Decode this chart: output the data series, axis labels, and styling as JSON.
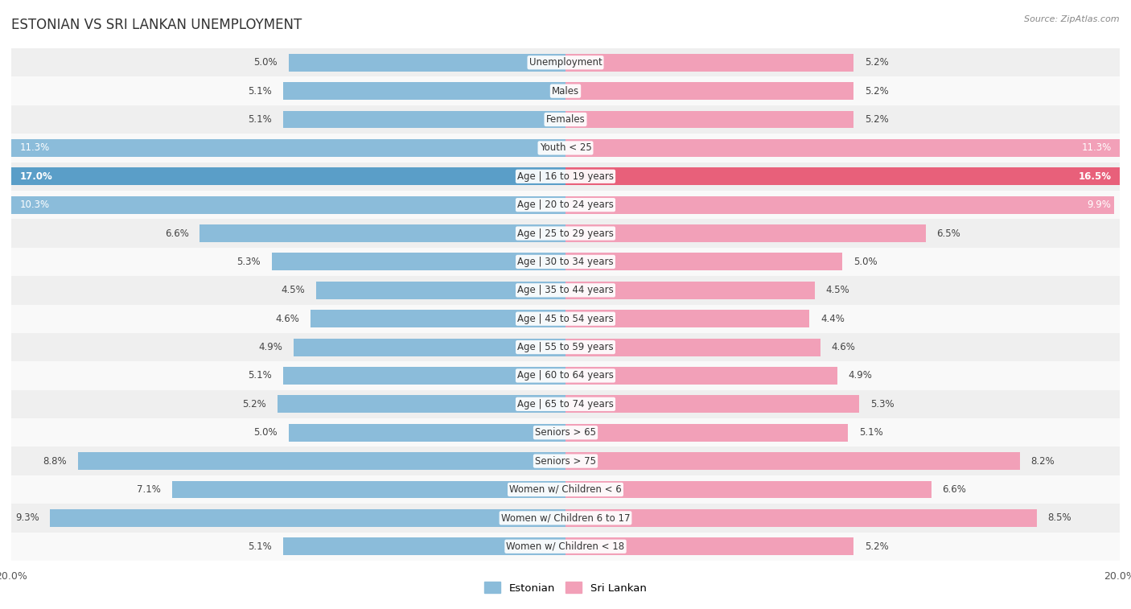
{
  "title": "ESTONIAN VS SRI LANKAN UNEMPLOYMENT",
  "source": "Source: ZipAtlas.com",
  "categories": [
    "Unemployment",
    "Males",
    "Females",
    "Youth < 25",
    "Age | 16 to 19 years",
    "Age | 20 to 24 years",
    "Age | 25 to 29 years",
    "Age | 30 to 34 years",
    "Age | 35 to 44 years",
    "Age | 45 to 54 years",
    "Age | 55 to 59 years",
    "Age | 60 to 64 years",
    "Age | 65 to 74 years",
    "Seniors > 65",
    "Seniors > 75",
    "Women w/ Children < 6",
    "Women w/ Children 6 to 17",
    "Women w/ Children < 18"
  ],
  "estonian": [
    5.0,
    5.1,
    5.1,
    11.3,
    17.0,
    10.3,
    6.6,
    5.3,
    4.5,
    4.6,
    4.9,
    5.1,
    5.2,
    5.0,
    8.8,
    7.1,
    9.3,
    5.1
  ],
  "sri_lankan": [
    5.2,
    5.2,
    5.2,
    11.3,
    16.5,
    9.9,
    6.5,
    5.0,
    4.5,
    4.4,
    4.6,
    4.9,
    5.3,
    5.1,
    8.2,
    6.6,
    8.5,
    5.2
  ],
  "estonian_color": "#8BBCDA",
  "sri_lankan_color": "#F2A0B8",
  "highlight_estonian_color": "#5A9EC8",
  "highlight_sri_lankan_color": "#E8607A",
  "row_bg_even": "#EFEFEF",
  "row_bg_odd": "#F9F9F9",
  "max_val": 20.0,
  "background_color": "#FFFFFF",
  "title_fontsize": 12,
  "label_fontsize": 8.5,
  "value_fontsize": 8.5
}
